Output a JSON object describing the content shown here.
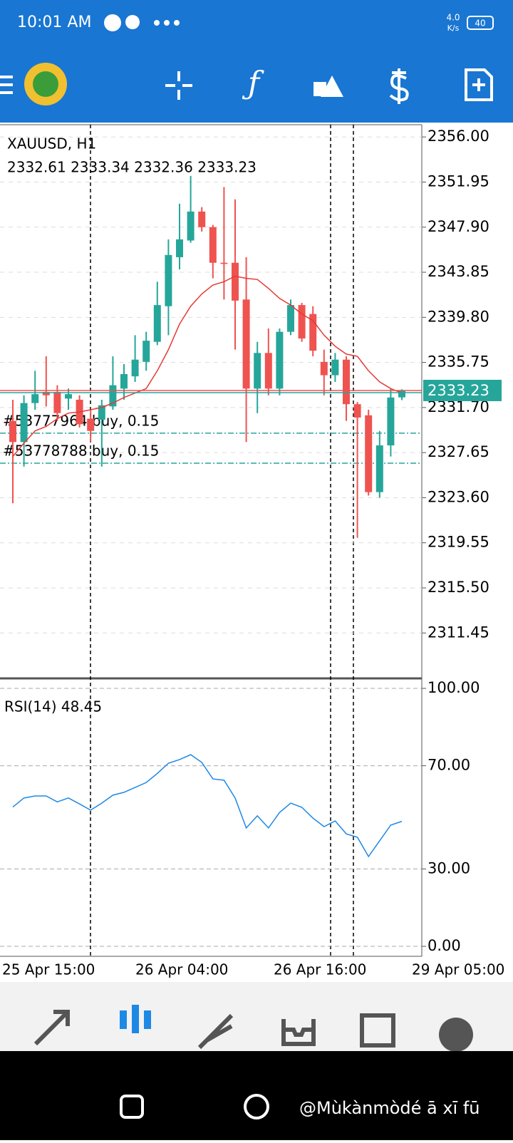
{
  "status_bar": {
    "time": "10:01 AM",
    "speed": "4.0",
    "speed_unit": "K/s",
    "battery": "40"
  },
  "chart_data": [
    {
      "type": "candlestick",
      "title": "XAUUSD, H1",
      "ohlc_label": "2332.61 2333.34 2332.36 2333.23",
      "open": [
        2330.5,
        2328.6,
        2332.1,
        2333.1,
        2333.1,
        2332.5,
        2332.4,
        2330.7,
        2330.6,
        2331.8,
        2333.4,
        2334.5,
        2335.8,
        2337.6,
        2340.8,
        2345.2,
        2346.7,
        2349.3,
        2347.9,
        2344.7,
        2344.7,
        2341.4,
        2333.4,
        2336.6,
        2333.4,
        2338.5,
        2340.9,
        2340.1,
        2335.8,
        2334.6,
        2336.0,
        2332.0,
        2331.0,
        2324.1,
        2328.3,
        2332.61
      ],
      "high": [
        2332.4,
        2332.8,
        2335.0,
        2336.3,
        2333.7,
        2333.4,
        2332.8,
        2331.5,
        2332.4,
        2336.3,
        2335.6,
        2338.2,
        2338.5,
        2343.0,
        2346.8,
        2350.0,
        2352.5,
        2349.7,
        2348.1,
        2351.5,
        2350.4,
        2345.2,
        2337.6,
        2338.8,
        2338.8,
        2341.4,
        2341.1,
        2340.8,
        2336.9,
        2336.6,
        2336.3,
        2332.2,
        2331.5,
        2329.6,
        2333.4,
        2333.34
      ],
      "low": [
        2323.1,
        2326.4,
        2331.5,
        2331.8,
        2330.5,
        2331.5,
        2329.9,
        2328.6,
        2326.4,
        2331.5,
        2332.4,
        2334.0,
        2335.0,
        2337.3,
        2338.2,
        2344.1,
        2346.5,
        2347.5,
        2343.3,
        2341.4,
        2336.9,
        2328.6,
        2331.2,
        2332.8,
        2332.8,
        2338.2,
        2337.6,
        2336.3,
        2332.8,
        2334.0,
        2330.5,
        2320.0,
        2323.8,
        2323.6,
        2327.3,
        2332.36
      ],
      "close": [
        2328.6,
        2332.1,
        2332.9,
        2332.8,
        2331.2,
        2332.9,
        2330.2,
        2329.6,
        2331.9,
        2333.7,
        2334.7,
        2336.0,
        2337.7,
        2340.9,
        2345.4,
        2346.8,
        2349.3,
        2347.9,
        2344.7,
        2344.6,
        2341.3,
        2333.4,
        2336.6,
        2333.4,
        2338.5,
        2340.9,
        2337.9,
        2336.8,
        2334.6,
        2336.0,
        2332.0,
        2330.8,
        2324.1,
        2328.3,
        2332.6,
        2333.23
      ],
      "up_color": "#26a69a",
      "down_color": "#ef5350",
      "ma": {
        "color": "#e53935",
        "values": [
          2327.3,
          2328.5,
          2329.6,
          2330.0,
          2330.7,
          2331.2,
          2331.3,
          2331.5,
          2331.7,
          2332.1,
          2332.6,
          2333.0,
          2333.4,
          2335.0,
          2336.9,
          2339.2,
          2340.8,
          2341.9,
          2342.7,
          2343.0,
          2343.5,
          2343.3,
          2343.2,
          2342.4,
          2341.5,
          2340.9,
          2340.1,
          2339.5,
          2338.2,
          2337.2,
          2336.5,
          2336.3,
          2335.0,
          2334.0,
          2333.4,
          2333.0
        ]
      },
      "current_price": 2333.23,
      "orders": [
        {
          "label": "#53777964 buy, 0.15",
          "price": 2329.4
        },
        {
          "label": "#53778788 buy, 0.15",
          "price": 2326.7
        }
      ],
      "ylim": [
        2307.5,
        2357.1
      ],
      "yticks": [
        {
          "value": 2356,
          "label": "2356.00"
        },
        {
          "value": 2351.95,
          "label": "2351.95"
        },
        {
          "value": 2347.9,
          "label": "2347.90"
        },
        {
          "value": 2343.85,
          "label": "2343.85"
        },
        {
          "value": 2339.8,
          "label": "2339.80"
        },
        {
          "value": 2335.75,
          "label": "2335.75"
        },
        {
          "value": 2331.7,
          "label": "2331.70"
        },
        {
          "value": 2327.65,
          "label": "2327.65"
        },
        {
          "value": 2323.6,
          "label": "2323.60"
        },
        {
          "value": 2319.55,
          "label": "2319.55"
        },
        {
          "value": 2315.5,
          "label": "2315.50"
        },
        {
          "value": 2311.45,
          "label": "2311.45"
        }
      ],
      "grid": true
    },
    {
      "type": "line",
      "title": "RSI(14) 48.45",
      "color": "#1e88e5",
      "values": [
        54,
        57.5,
        58.3,
        58.3,
        56,
        57.5,
        55.2,
        52.8,
        55.5,
        58.6,
        59.7,
        61.6,
        63.5,
        67,
        71,
        72.4,
        74.3,
        71.3,
        64.9,
        64.4,
        57.5,
        45.9,
        50.6,
        45.9,
        51.9,
        55.5,
        53.9,
        49.7,
        46.4,
        48.6,
        43.6,
        42.3,
        34.8,
        40.9,
        47,
        48.45
      ],
      "ylim": [
        0,
        100
      ],
      "yticks": [
        {
          "value": 100,
          "label": "100.00"
        },
        {
          "value": 70,
          "label": "70.00"
        },
        {
          "value": 30,
          "label": "30.00"
        },
        {
          "value": 0,
          "label": "0.00"
        }
      ],
      "x_labels": [
        "25 Apr 15:00",
        "26 Apr 04:00",
        "26 Apr 16:00",
        "29 Apr 05:00"
      ],
      "grid": true
    }
  ],
  "watermark": "@Mùkànmòdé ā xī fū"
}
